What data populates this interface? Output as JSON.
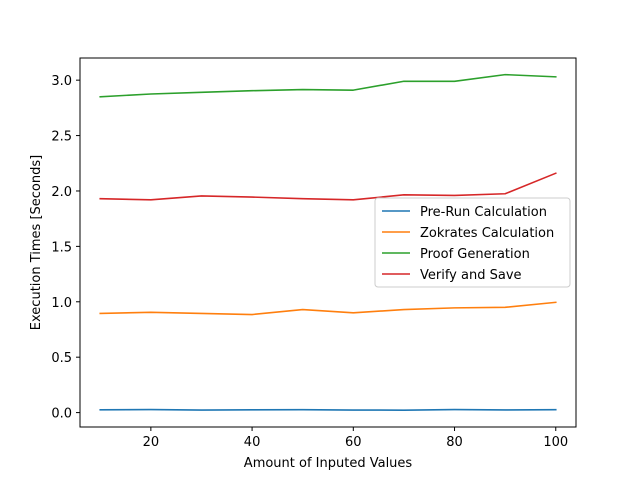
{
  "chart_data": {
    "type": "line",
    "title": "",
    "xlabel": "Amount of Inputed Values",
    "ylabel": "Execution Times [Seconds]",
    "xlim": [
      6,
      104
    ],
    "ylim": [
      -0.13,
      3.2
    ],
    "xticks": [
      20,
      40,
      60,
      80,
      100
    ],
    "yticks": [
      0.0,
      0.5,
      1.0,
      1.5,
      2.0,
      2.5,
      3.0
    ],
    "ytick_labels": [
      "0.0",
      "0.5",
      "1.0",
      "1.5",
      "2.0",
      "2.5",
      "3.0"
    ],
    "grid": false,
    "legend_position": "center-right",
    "x": [
      10,
      20,
      30,
      40,
      50,
      60,
      70,
      80,
      90,
      100
    ],
    "series": [
      {
        "name": "Pre-Run Calculation",
        "color": "#1f77b4",
        "values": [
          0.025,
          0.027,
          0.023,
          0.025,
          0.026,
          0.023,
          0.022,
          0.027,
          0.024,
          0.026
        ]
      },
      {
        "name": "Zokrates Calculation",
        "color": "#ff7f0e",
        "values": [
          0.895,
          0.905,
          0.895,
          0.885,
          0.93,
          0.9,
          0.93,
          0.945,
          0.95,
          0.995
        ]
      },
      {
        "name": "Proof Generation",
        "color": "#2ca02c",
        "values": [
          2.85,
          2.875,
          2.89,
          2.905,
          2.915,
          2.91,
          2.99,
          2.99,
          3.05,
          3.03
        ]
      },
      {
        "name": "Verify and Save",
        "color": "#d62728",
        "values": [
          1.93,
          1.92,
          1.955,
          1.945,
          1.93,
          1.92,
          1.965,
          1.96,
          1.975,
          2.16
        ]
      }
    ]
  }
}
